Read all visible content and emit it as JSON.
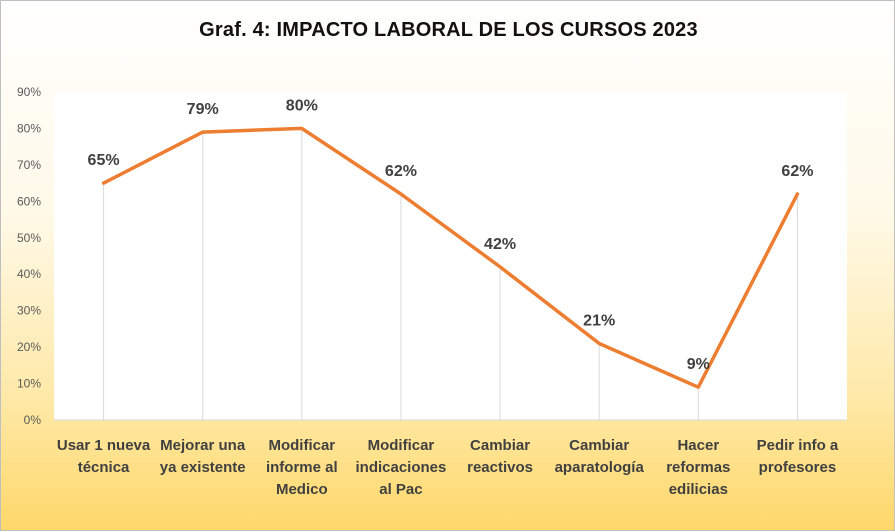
{
  "chart_data": {
    "type": "line",
    "title": "Graf.  4: IMPACTO  LABORAL  DE LOS  CURSOS  2023",
    "xlabel": "",
    "ylabel": "",
    "categories": [
      [
        "Usar 1 nueva",
        "técnica"
      ],
      [
        "Mejorar una",
        "ya existente"
      ],
      [
        "Modificar",
        "informe al",
        "Medico"
      ],
      [
        "Modificar",
        "indicaciones",
        "al Pac"
      ],
      [
        "Cambiar",
        "reactivos"
      ],
      [
        "Cambiar",
        "aparatología"
      ],
      [
        "Hacer",
        "reformas",
        "edilicias"
      ],
      [
        "Pedir info a",
        "profesores"
      ]
    ],
    "series": [
      {
        "values": [
          65,
          79,
          80,
          62,
          42,
          21,
          9,
          62
        ],
        "labels": [
          "65%",
          "79%",
          "80%",
          "62%",
          "42%",
          "21%",
          "9%",
          "62%"
        ],
        "color": "#ed7d31"
      }
    ],
    "ylim": [
      0,
      90
    ],
    "yticks": [
      0,
      10,
      20,
      30,
      40,
      50,
      60,
      70,
      80,
      90
    ],
    "ytick_labels": [
      "0%",
      "10%",
      "20%",
      "30%",
      "40%",
      "50%",
      "60%",
      "70%",
      "80%",
      "90%"
    ],
    "grid": "vertical drop lines",
    "legend": "none"
  },
  "colors": {
    "line": "#ed7d31",
    "plot_area": "#ffffff",
    "axis": "#d9d9d9",
    "grid": "#d9d9d9"
  }
}
